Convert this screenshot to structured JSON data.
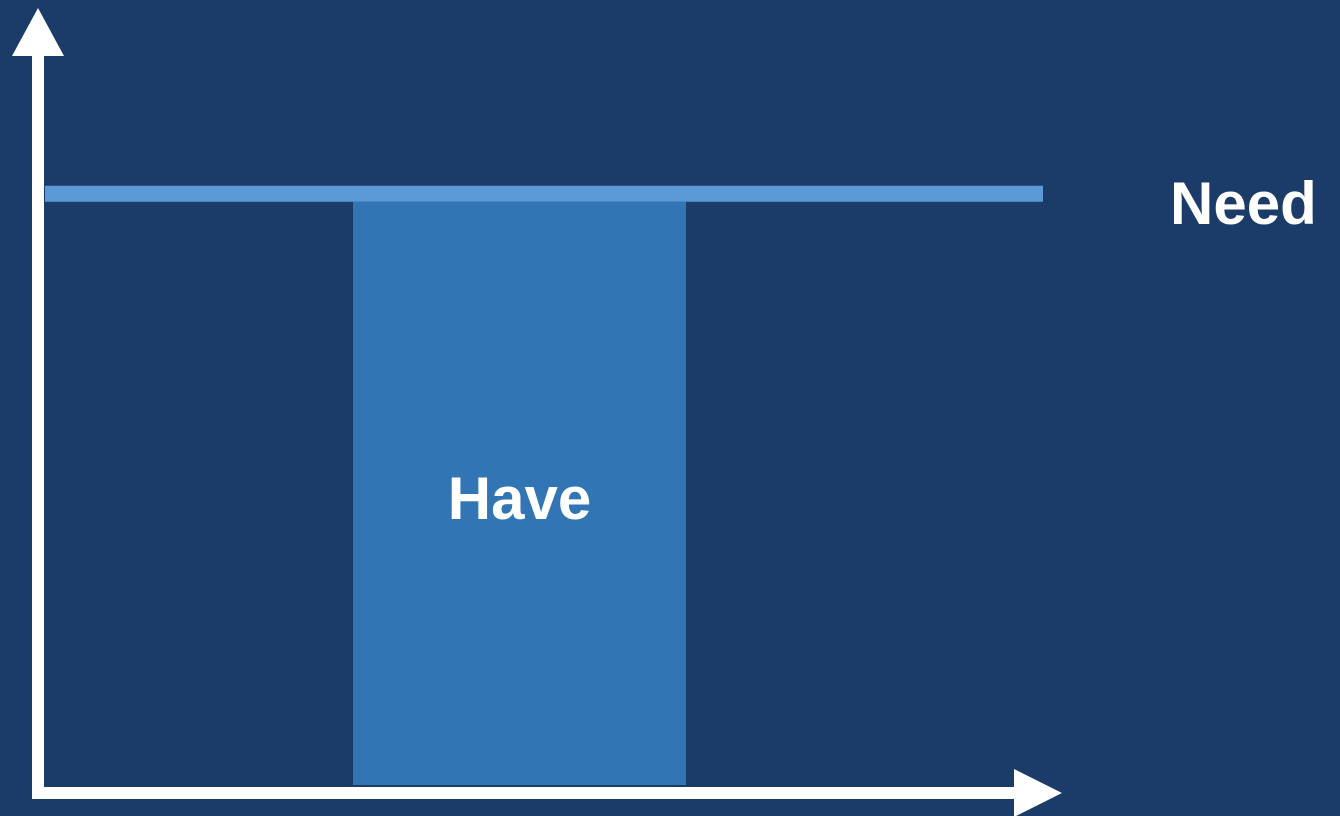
{
  "chart_data": {
    "type": "bar",
    "title": "",
    "xlabel": "",
    "ylabel": "",
    "categories": [
      "Have"
    ],
    "values": [
      0.8
    ],
    "reference_line": {
      "label": "Need",
      "value": 0.8
    },
    "ylim": [
      0,
      1
    ],
    "grid": false,
    "legend": "none",
    "colors": {
      "background": "#1b3c68",
      "bar": "#3275b5",
      "need_line": "#5b99d6",
      "axis": "#ffffff",
      "text": "#ffffff"
    }
  }
}
